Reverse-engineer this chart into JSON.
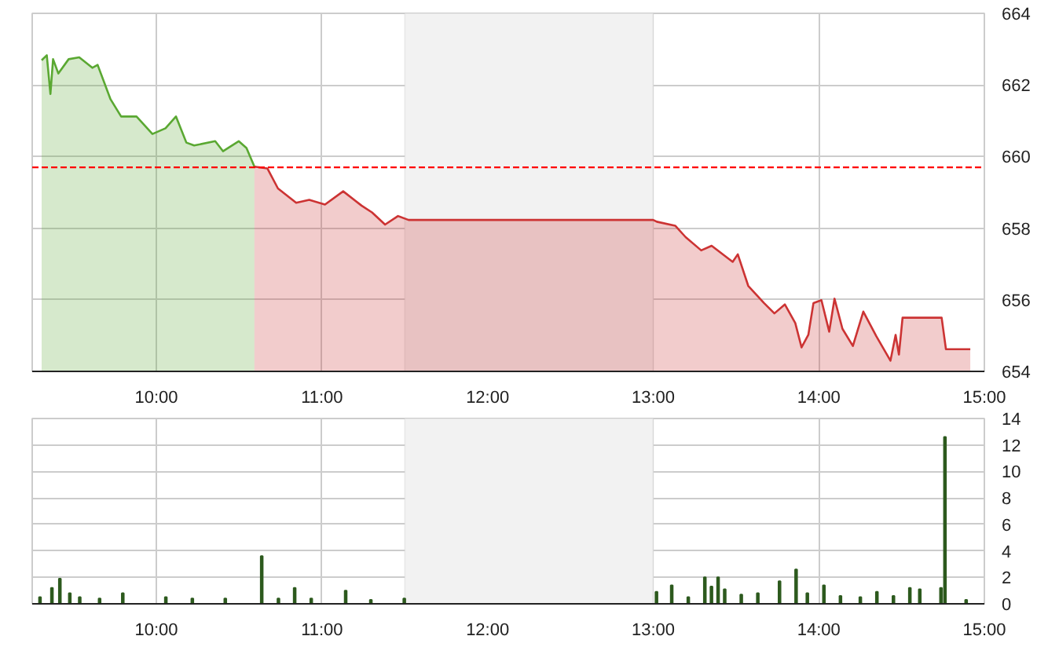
{
  "chart_data": [
    {
      "type": "area",
      "xlim": [
        9.25,
        15.0
      ],
      "ylim": [
        654,
        664
      ],
      "xticks": [
        {
          "value": 10,
          "label": "10:00"
        },
        {
          "value": 11,
          "label": "11:00"
        },
        {
          "value": 12,
          "label": "12:00"
        },
        {
          "value": 13,
          "label": "13:00"
        },
        {
          "value": 14,
          "label": "14:00"
        },
        {
          "value": 15,
          "label": "15:00"
        }
      ],
      "yticks": [
        654,
        656,
        658,
        660,
        662,
        664
      ],
      "grid": true,
      "ref_lines": [
        {
          "axis": "y",
          "value": 659.7,
          "color": "#ff0000",
          "line_style": "dashed"
        }
      ],
      "bands": [
        {
          "axis": "x",
          "from": 11.5,
          "to": 13.0,
          "color": "#f2f2f2"
        }
      ],
      "series": [
        {
          "color": "#5aa832",
          "x": [
            9.307,
            9.338,
            9.36,
            9.376,
            9.408,
            9.47,
            9.534,
            9.613,
            9.645,
            9.723,
            9.787,
            9.88,
            9.976,
            10.055,
            10.118,
            10.181,
            10.228,
            10.355,
            10.402,
            10.497,
            10.544,
            10.592
          ],
          "values": [
            662.69,
            662.83,
            661.75,
            662.72,
            662.32,
            662.72,
            662.77,
            662.48,
            662.56,
            661.6,
            661.12,
            661.12,
            660.63,
            660.79,
            661.12,
            660.39,
            660.31,
            660.43,
            660.15,
            660.43,
            660.24,
            659.72
          ]
        },
        {
          "color": "#cc3333",
          "x": [
            10.592,
            10.67,
            10.734,
            10.844,
            10.923,
            11.018,
            11.128,
            11.239,
            11.302,
            11.381,
            11.459,
            11.523,
            13.0,
            13.022,
            13.133,
            13.196,
            13.29,
            13.353,
            13.48,
            13.511,
            13.574,
            13.669,
            13.732,
            13.795,
            13.858,
            13.896,
            13.937,
            13.968,
            14.016,
            14.063,
            14.095,
            14.143,
            14.206,
            14.269,
            14.348,
            14.433,
            14.464,
            14.484,
            14.506,
            14.742,
            14.768,
            14.915
          ],
          "values": [
            659.72,
            659.67,
            659.11,
            658.71,
            658.79,
            658.66,
            659.03,
            658.63,
            658.44,
            658.1,
            658.34,
            658.23,
            658.23,
            658.18,
            658.07,
            657.75,
            657.38,
            657.51,
            657.06,
            657.27,
            656.39,
            655.91,
            655.62,
            655.87,
            655.35,
            654.67,
            655.02,
            655.91,
            655.99,
            655.11,
            656.03,
            655.19,
            654.71,
            655.67,
            654.98,
            654.3,
            655.02,
            654.47,
            655.5,
            655.5,
            654.62,
            654.62
          ]
        }
      ]
    },
    {
      "type": "bar",
      "xlim": [
        9.25,
        15.0
      ],
      "ylim": [
        0,
        14
      ],
      "xticks": [
        {
          "value": 10,
          "label": "10:00"
        },
        {
          "value": 11,
          "label": "11:00"
        },
        {
          "value": 12,
          "label": "12:00"
        },
        {
          "value": 13,
          "label": "13:00"
        },
        {
          "value": 14,
          "label": "14:00"
        },
        {
          "value": 15,
          "label": "15:00"
        }
      ],
      "yticks": [
        0,
        2,
        4,
        6,
        8,
        10,
        12,
        14
      ],
      "grid": true,
      "bands": [
        {
          "axis": "x",
          "from": 11.5,
          "to": 13.0,
          "color": "#f2f2f2"
        }
      ],
      "series": [
        {
          "color": "#2d5a1e",
          "x": [
            9.297,
            9.369,
            9.417,
            9.477,
            9.537,
            9.657,
            9.797,
            10.057,
            10.217,
            10.416,
            10.636,
            10.737,
            10.835,
            10.935,
            11.143,
            11.295,
            11.497,
            13.02,
            13.112,
            13.212,
            13.312,
            13.352,
            13.392,
            13.432,
            13.532,
            13.632,
            13.763,
            13.863,
            13.931,
            14.031,
            14.131,
            14.251,
            14.351,
            14.451,
            14.55,
            14.61,
            14.738,
            14.762,
            14.89
          ],
          "values": [
            0.5,
            1.2,
            1.9,
            0.8,
            0.5,
            0.4,
            0.8,
            0.5,
            0.4,
            0.4,
            3.6,
            0.4,
            1.2,
            0.4,
            1.0,
            0.3,
            0.4,
            0.9,
            1.4,
            0.5,
            2.0,
            1.3,
            2.0,
            1.1,
            0.7,
            0.8,
            1.7,
            2.6,
            0.8,
            1.4,
            0.6,
            0.5,
            0.9,
            0.6,
            1.2,
            1.1,
            1.2,
            12.6,
            0.3
          ]
        }
      ]
    }
  ]
}
